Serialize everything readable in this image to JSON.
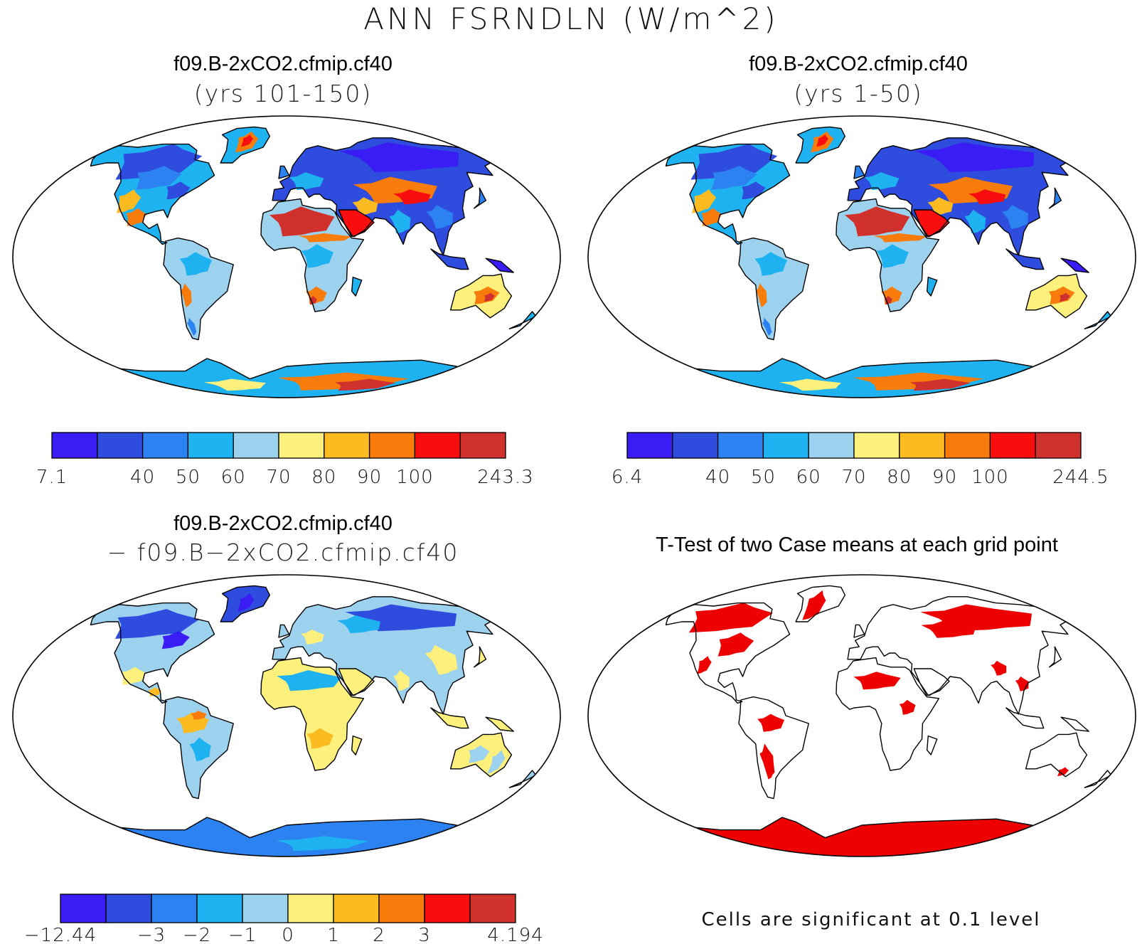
{
  "page": {
    "title": "ANN FSRNDLN (W/m^2)"
  },
  "panels": [
    {
      "title": "f09.B-2xCO2.cfmip.cf40",
      "subtitle": "(yrs 101-150)",
      "colorbar": {
        "labels": [
          "7.1",
          "40",
          "50",
          "60",
          "70",
          "80",
          "90",
          "100",
          "243.3"
        ]
      }
    },
    {
      "title": "f09.B-2xCO2.cfmip.cf40",
      "subtitle": "(yrs 1-50)",
      "colorbar": {
        "labels": [
          "6.4",
          "40",
          "50",
          "60",
          "70",
          "80",
          "90",
          "100",
          "244.5"
        ]
      }
    },
    {
      "title": "f09.B-2xCO2.cfmip.cf40",
      "subtitle": "− f09.B−2xCO2.cfmip.cf40",
      "colorbar": {
        "labels": [
          "−12.44",
          "−3",
          "−2",
          "−1",
          "0",
          "1",
          "2",
          "3",
          "4.194"
        ]
      }
    },
    {
      "title": "T-Test of two Case means at each grid point",
      "footnote": "Cells are significant at 0.1 level"
    }
  ],
  "colors": {
    "palette": [
      "#3a1cf4",
      "#2e4cde",
      "#2b82f0",
      "#1fb2f0",
      "#9dd2ef",
      "#fdf07c",
      "#fbbb21",
      "#f87c0b",
      "#f80e0e",
      "#d0312c"
    ],
    "significant": "#ee0000",
    "ocean": "#ffffff"
  },
  "chart_data": [
    {
      "type": "map",
      "projection": "Robinson",
      "field": "FSRNDLN",
      "units": "W/m^2",
      "period": "ANN",
      "case": "f09.B-2xCO2.cfmip.cf40",
      "years": "101-150",
      "colorbar_range": [
        7.1,
        243.3
      ],
      "contour_levels": [
        40,
        50,
        60,
        70,
        80,
        90,
        100
      ]
    },
    {
      "type": "map",
      "projection": "Robinson",
      "field": "FSRNDLN",
      "units": "W/m^2",
      "period": "ANN",
      "case": "f09.B-2xCO2.cfmip.cf40",
      "years": "1-50",
      "colorbar_range": [
        6.4,
        244.5
      ],
      "contour_levels": [
        40,
        50,
        60,
        70,
        80,
        90,
        100
      ]
    },
    {
      "type": "map",
      "projection": "Robinson",
      "field": "FSRNDLN difference",
      "units": "W/m^2",
      "colorbar_range": [
        -12.44,
        4.194
      ],
      "contour_levels": [
        -3,
        -2,
        -1,
        0,
        1,
        2,
        3
      ]
    },
    {
      "type": "map",
      "projection": "Robinson",
      "field": "t-test significance",
      "significance_level": 0.1
    }
  ]
}
